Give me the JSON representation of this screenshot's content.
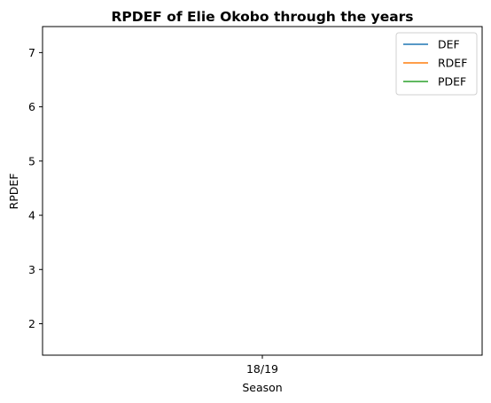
{
  "chart_data": {
    "type": "line",
    "title": "RPDEF of Elie Okobo through the years",
    "xlabel": "Season",
    "ylabel": "RPDEF",
    "categories": [
      "18/19"
    ],
    "yticks": [
      2,
      3,
      4,
      5,
      6,
      7
    ],
    "ylim": [
      1.42,
      7.48
    ],
    "grid": false,
    "legend_position": "top-right",
    "series": [
      {
        "name": "DEF",
        "color": "#1f77b4",
        "values": [
          null
        ]
      },
      {
        "name": "RDEF",
        "color": "#ff7f0e",
        "values": [
          null
        ]
      },
      {
        "name": "PDEF",
        "color": "#2ca02c",
        "values": [
          null
        ]
      }
    ]
  }
}
